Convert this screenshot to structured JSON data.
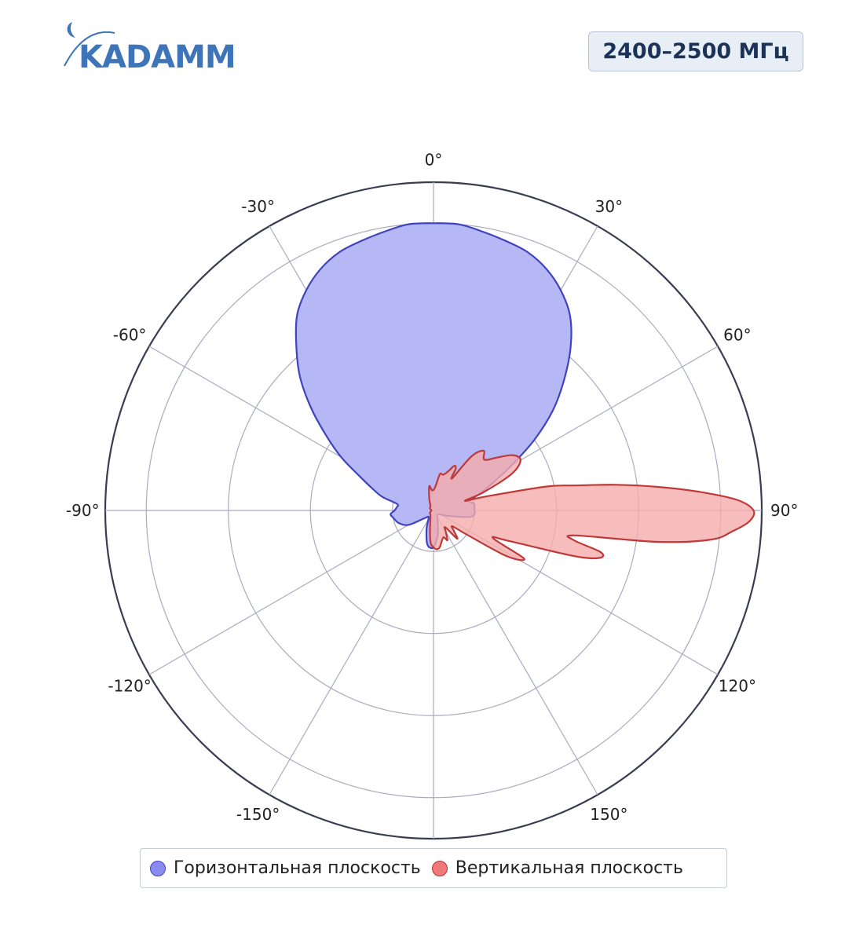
{
  "brand": {
    "logo_text": "KADAMM",
    "logo_color": "#3d75b8"
  },
  "badge": {
    "label": "2400–2500 МГц"
  },
  "legend": {
    "items": [
      {
        "label": "Горизонтальная плоскость",
        "color": "#8a8af0",
        "border": "#4444bb"
      },
      {
        "label": "Вертикальная плоскость",
        "color": "#f07a7a",
        "border": "#bb3333"
      }
    ]
  },
  "chart_data": {
    "type": "polar",
    "title": "",
    "angle_unit": "deg",
    "angle_ticks": [
      0,
      30,
      60,
      90,
      120,
      150,
      180,
      -150,
      -120,
      -90,
      -60,
      -30
    ],
    "angle_tick_labels": [
      "0°",
      "30°",
      "60°",
      "90°",
      "120°",
      "150°",
      "",
      "-150°",
      "-120°",
      "-90°",
      "-60°",
      "-30°"
    ],
    "radial_range": [
      0,
      8
    ],
    "radial_gridlines": [
      1,
      2,
      3,
      4,
      5,
      6,
      7,
      8
    ],
    "grid": true,
    "legend_position": "bottom",
    "series": [
      {
        "name": "Горизонтальная плоскость",
        "fill": "#b6b8f6",
        "stroke": "#3f43bf",
        "points": [
          [
            -180,
            0.9
          ],
          [
            -170,
            0.85
          ],
          [
            -160,
            0.5
          ],
          [
            -150,
            0.25
          ],
          [
            -140,
            0.2
          ],
          [
            -130,
            0.3
          ],
          [
            -120,
            0.7
          ],
          [
            -110,
            0.9
          ],
          [
            -100,
            1.0
          ],
          [
            -95,
            1.05
          ],
          [
            -90,
            0.95
          ],
          [
            -85,
            0.9
          ],
          [
            -80,
            0.9
          ],
          [
            -75,
            1.3
          ],
          [
            -70,
            1.6
          ],
          [
            -65,
            2.0
          ],
          [
            -60,
            2.6
          ],
          [
            -55,
            3.2
          ],
          [
            -50,
            3.9
          ],
          [
            -45,
            4.6
          ],
          [
            -40,
            5.2
          ],
          [
            -35,
            5.8
          ],
          [
            -30,
            6.2
          ],
          [
            -25,
            6.5
          ],
          [
            -20,
            6.7
          ],
          [
            -15,
            6.8
          ],
          [
            -10,
            6.9
          ],
          [
            -5,
            7.0
          ],
          [
            0,
            7.0
          ],
          [
            5,
            7.0
          ],
          [
            10,
            6.9
          ],
          [
            15,
            6.8
          ],
          [
            20,
            6.7
          ],
          [
            25,
            6.5
          ],
          [
            30,
            6.2
          ],
          [
            35,
            5.8
          ],
          [
            40,
            5.2
          ],
          [
            45,
            4.5
          ],
          [
            50,
            3.8
          ],
          [
            55,
            3.0
          ],
          [
            60,
            2.2
          ],
          [
            65,
            1.6
          ],
          [
            70,
            1.2
          ],
          [
            75,
            0.9
          ],
          [
            80,
            1.0
          ],
          [
            85,
            1.0
          ],
          [
            90,
            1.0
          ],
          [
            95,
            1.0
          ],
          [
            100,
            0.9
          ],
          [
            110,
            0.4
          ],
          [
            120,
            0.2
          ],
          [
            140,
            0.15
          ],
          [
            160,
            0.3
          ],
          [
            170,
            0.6
          ]
        ]
      },
      {
        "name": "Вертикальная плоскость",
        "fill": "#f5adad",
        "stroke": "#c03838",
        "points": [
          [
            -180,
            0.9
          ],
          [
            -175,
            0.8
          ],
          [
            -170,
            0.5
          ],
          [
            -150,
            0.15
          ],
          [
            -120,
            0.1
          ],
          [
            -90,
            0.05
          ],
          [
            -60,
            0.1
          ],
          [
            -30,
            0.15
          ],
          [
            -20,
            0.3
          ],
          [
            -10,
            0.6
          ],
          [
            -5,
            0.5
          ],
          [
            0,
            0.5
          ],
          [
            5,
            0.6
          ],
          [
            10,
            0.9
          ],
          [
            15,
            0.9
          ],
          [
            20,
            1.0
          ],
          [
            25,
            1.2
          ],
          [
            28,
            1.15
          ],
          [
            30,
            0.9
          ],
          [
            35,
            1.6
          ],
          [
            40,
            1.9
          ],
          [
            45,
            1.75
          ],
          [
            50,
            2.0
          ],
          [
            55,
            2.35
          ],
          [
            60,
            2.45
          ],
          [
            65,
            2.1
          ],
          [
            70,
            1.3
          ],
          [
            73,
            0.8
          ],
          [
            75,
            1.3
          ],
          [
            78,
            2.8
          ],
          [
            80,
            3.5
          ],
          [
            82,
            4.5
          ],
          [
            84,
            5.5
          ],
          [
            86,
            6.5
          ],
          [
            88,
            7.4
          ],
          [
            90,
            7.8
          ],
          [
            92,
            7.7
          ],
          [
            94,
            7.3
          ],
          [
            96,
            6.8
          ],
          [
            98,
            5.5
          ],
          [
            100,
            3.5
          ],
          [
            102,
            3.5
          ],
          [
            104,
            4.2
          ],
          [
            106,
            4.2
          ],
          [
            108,
            3.6
          ],
          [
            112,
            2.0
          ],
          [
            115,
            1.6
          ],
          [
            118,
            2.5
          ],
          [
            122,
            2.1
          ],
          [
            126,
            1.0
          ],
          [
            130,
            0.6
          ],
          [
            135,
            0.7
          ],
          [
            140,
            0.9
          ],
          [
            145,
            0.5
          ],
          [
            150,
            0.6
          ],
          [
            155,
            0.8
          ],
          [
            160,
            0.7
          ],
          [
            170,
            0.9
          ],
          [
            175,
            0.95
          ]
        ]
      }
    ]
  }
}
